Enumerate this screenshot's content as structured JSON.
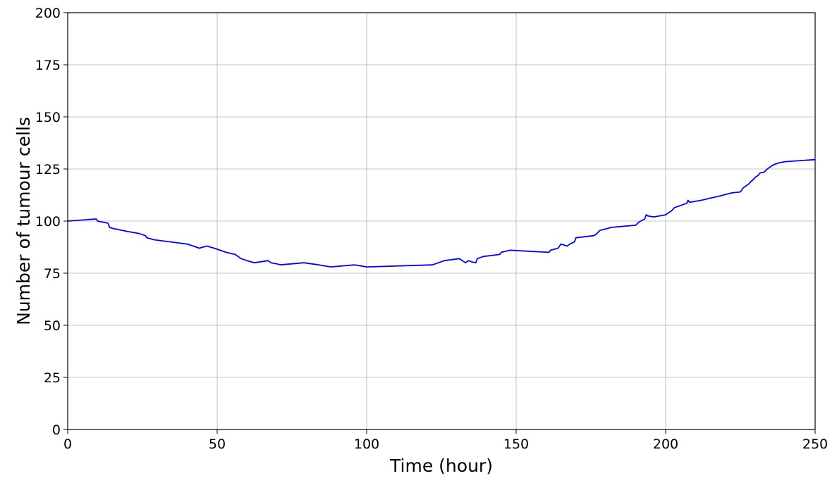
{
  "chart_data": {
    "type": "line",
    "title": "",
    "xlabel": "Time (hour)",
    "ylabel": "Number of tumour cells",
    "xlim": [
      0,
      250
    ],
    "ylim": [
      0,
      200
    ],
    "xticks": [
      0,
      50,
      100,
      150,
      200,
      250
    ],
    "yticks": [
      0,
      25,
      50,
      75,
      100,
      125,
      150,
      175,
      200
    ],
    "grid": true,
    "line_color": "#0000ff",
    "series": [
      {
        "x": [
          0,
          9.5,
          10,
          13.5,
          14,
          15,
          20,
          24,
          26,
          26.5,
          29,
          40,
          42,
          44,
          46.5,
          49,
          53,
          56,
          57,
          58,
          60,
          62.5,
          67,
          68,
          70,
          71,
          79,
          84,
          88,
          96,
          100,
          122,
          124,
          126,
          131,
          132,
          133,
          134,
          135,
          136.5,
          137,
          139,
          144.5,
          145,
          148,
          161,
          161.5,
          164,
          165,
          167,
          168,
          169.5,
          170,
          176,
          177,
          178,
          182,
          190,
          191,
          193,
          193.5,
          194,
          196,
          200,
          202,
          203,
          205,
          207,
          207.5,
          208,
          212,
          215,
          218,
          222,
          225,
          226,
          227,
          228,
          228.5,
          229,
          230,
          231,
          231.5,
          233,
          234,
          235,
          236,
          238,
          240,
          250
        ],
        "y": [
          100,
          101,
          100,
          99,
          97,
          96.5,
          95,
          94,
          93,
          92,
          91,
          89,
          88,
          87,
          88,
          87,
          85,
          84,
          83,
          82,
          81,
          80,
          81,
          80,
          79.5,
          79,
          80,
          79,
          78,
          79,
          78,
          79,
          80,
          81,
          82,
          81,
          80,
          81,
          80.5,
          80,
          82,
          83,
          84,
          85,
          86,
          85,
          86,
          87,
          89,
          88,
          89,
          90,
          92,
          93,
          94,
          95.5,
          97,
          98,
          99.5,
          101,
          103,
          102.5,
          102,
          103,
          105,
          106.5,
          107.5,
          108.5,
          110,
          109,
          110,
          111,
          112,
          113.5,
          114,
          116,
          117,
          118,
          119,
          119.5,
          121,
          122,
          123,
          123.5,
          125,
          126,
          127,
          128,
          128.5,
          129.5
        ]
      }
    ]
  }
}
